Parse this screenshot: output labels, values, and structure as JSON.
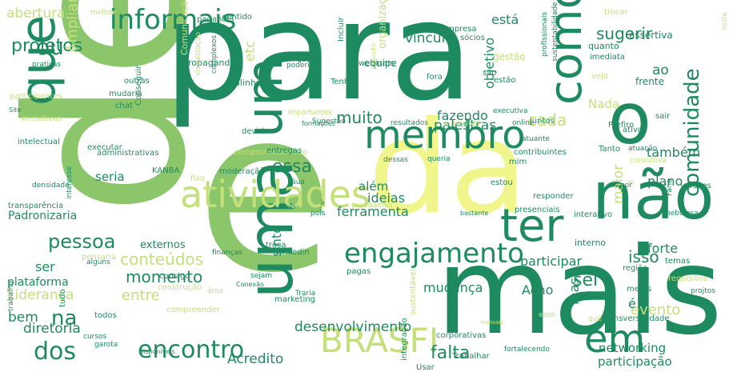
{
  "palette": {
    "dark_green": "#1e8a5f",
    "mid_green": "#3da66a",
    "light_green": "#8cc66b",
    "yellow_green": "#c3e07a",
    "pale_yellow": "#f0f58c",
    "teal": "#2a9d73",
    "forest": "#26905c"
  },
  "words": [
    {
      "text": "de",
      "color": "light_green",
      "rot": 90
    },
    {
      "text": "para",
      "color": "dark_green",
      "rot": 0
    },
    {
      "text": "e",
      "color": "light_green",
      "rot": 0
    },
    {
      "text": "da",
      "color": "pale_yellow",
      "rot": 0
    },
    {
      "text": "o",
      "color": "dark_green",
      "rot": 0
    },
    {
      "text": "mais",
      "color": "dark_green",
      "rot": 0
    },
    {
      "text": "que",
      "color": "dark_green",
      "rot": 90
    },
    {
      "text": "uma",
      "color": "dark_green",
      "rot": 90
    },
    {
      "text": "um",
      "color": "dark_green",
      "rot": 90
    },
    {
      "text": "não",
      "color": "dark_green",
      "rot": 0
    },
    {
      "text": "membro",
      "color": "dark_green",
      "rot": 0
    },
    {
      "text": "atividades",
      "color": "yellow_green",
      "rot": 0
    },
    {
      "text": "informais",
      "color": "dark_green",
      "rot": 0
    },
    {
      "text": "como",
      "color": "dark_green",
      "rot": 90
    },
    {
      "text": "ter",
      "color": "dark_green",
      "rot": 0
    },
    {
      "text": "engajamento",
      "color": "dark_green",
      "rot": 0
    },
    {
      "text": "BRASFI",
      "color": "yellow_green",
      "rot": 0
    },
    {
      "text": "em",
      "color": "dark_green",
      "rot": 0
    },
    {
      "text": "encontro",
      "color": "dark_green",
      "rot": 0
    },
    {
      "text": "dos",
      "color": "dark_green",
      "rot": 0
    },
    {
      "text": "na",
      "color": "dark_green",
      "rot": 0
    },
    {
      "text": "comunidade",
      "color": "dark_green",
      "rot": 90
    },
    {
      "text": "ou",
      "color": "dark_green",
      "rot": 0
    },
    {
      "text": "projetos",
      "color": "dark_green",
      "rot": 0
    },
    {
      "text": "abertura",
      "color": "yellow_green",
      "rot": 0
    },
    {
      "text": "etc",
      "color": "yellow_green",
      "rot": 90
    },
    {
      "text": "pessoa",
      "color": "dark_green",
      "rot": 0
    },
    {
      "text": "conteúdos",
      "color": "yellow_green",
      "rot": 0
    },
    {
      "text": "momento",
      "color": "dark_green",
      "rot": 0
    },
    {
      "text": "entre",
      "color": "yellow_green",
      "rot": 0
    },
    {
      "text": "muito",
      "color": "dark_green",
      "rot": 0
    },
    {
      "text": "fazendo",
      "color": "dark_green",
      "rot": 0
    },
    {
      "text": "cada",
      "color": "yellow_green",
      "rot": 0
    },
    {
      "text": "palestras",
      "color": "dark_green",
      "rot": 0
    },
    {
      "text": "essa",
      "color": "dark_green",
      "rot": 0
    },
    {
      "text": "isso",
      "color": "dark_green",
      "rot": 0
    },
    {
      "text": "sugerir",
      "color": "dark_green",
      "rot": 0
    },
    {
      "text": "vínculo",
      "color": "dark_green",
      "rot": 0
    },
    {
      "text": "objetivo",
      "color": "dark_green",
      "rot": 90
    },
    {
      "text": "Nada",
      "color": "yellow_green",
      "rot": 0
    },
    {
      "text": "ao",
      "color": "dark_green",
      "rot": 0
    },
    {
      "text": "também",
      "color": "dark_green",
      "rot": 0
    },
    {
      "text": "plano",
      "color": "dark_green",
      "rot": 0
    },
    {
      "text": "forte",
      "color": "dark_green",
      "rot": 0
    },
    {
      "text": "participar",
      "color": "dark_green",
      "rot": 0
    },
    {
      "text": "sei",
      "color": "dark_green",
      "rot": 0
    },
    {
      "text": "mas",
      "color": "dark_green",
      "rot": 90
    },
    {
      "text": "evento",
      "color": "yellow_green",
      "rot": 0
    },
    {
      "text": "é",
      "color": "dark_green",
      "rot": 0
    },
    {
      "text": "networking",
      "color": "dark_green",
      "rot": 0
    },
    {
      "text": "participação",
      "color": "dark_green",
      "rot": 0
    },
    {
      "text": "falta",
      "color": "dark_green",
      "rot": 0
    },
    {
      "text": "desenvolvimento",
      "color": "dark_green",
      "rot": 0
    },
    {
      "text": "Acredito",
      "color": "dark_green",
      "rot": 0
    },
    {
      "text": "mudança",
      "color": "dark_green",
      "rot": 0
    },
    {
      "text": "Acho",
      "color": "dark_green",
      "rot": 0
    },
    {
      "text": "ideias",
      "color": "dark_green",
      "rot": 0
    },
    {
      "text": "ferramenta",
      "color": "dark_green",
      "rot": 0
    },
    {
      "text": "além",
      "color": "dark_green",
      "rot": 0
    },
    {
      "text": "sinto",
      "color": "dark_green",
      "rot": 90
    },
    {
      "text": "seria",
      "color": "dark_green",
      "rot": 0
    },
    {
      "text": "maior",
      "color": "yellow_green",
      "rot": 90
    },
    {
      "text": "plataforma",
      "color": "dark_green",
      "rot": 0
    },
    {
      "text": "Liderança",
      "color": "yellow_green",
      "rot": 0
    },
    {
      "text": "bem",
      "color": "dark_green",
      "rot": 0
    },
    {
      "text": "diretoria",
      "color": "dark_green",
      "rot": 0
    },
    {
      "text": "ser",
      "color": "dark_green",
      "rot": 0
    },
    {
      "text": "Ampliar",
      "color": "yellow_green",
      "rot": 90
    },
    {
      "text": "está",
      "color": "dark_green",
      "rot": 0
    },
    {
      "text": "se",
      "color": "dark_green",
      "rot": 0
    },
    {
      "text": "externos",
      "color": "dark_green",
      "rot": 0
    },
    {
      "text": "interno",
      "color": "dark_green",
      "rot": 0
    },
    {
      "text": "organização",
      "color": "yellow_green",
      "rot": 90
    },
    {
      "text": "Comunicação",
      "color": "yellow_green",
      "rot": 90
    },
    {
      "text": "equipe",
      "color": "dark_green",
      "rot": 0
    },
    {
      "text": "empresa",
      "color": "dark_green",
      "rot": 0
    },
    {
      "text": "sócios",
      "color": "dark_green",
      "rot": 0
    },
    {
      "text": "imediata",
      "color": "dark_green",
      "rot": 0
    },
    {
      "text": "frente",
      "color": "dark_green",
      "rot": 0
    },
    {
      "text": "assertiva",
      "color": "dark_green",
      "rot": 0
    },
    {
      "text": "quanto",
      "color": "dark_green",
      "rot": 0
    },
    {
      "text": "trocar",
      "color": "yellow_green",
      "rot": 0
    },
    {
      "text": "noite",
      "color": "yellow_green",
      "rot": 90
    },
    {
      "text": "sustentabilidade",
      "color": "dark_green",
      "rot": 90
    },
    {
      "text": "profissionais",
      "color": "dark_green",
      "rot": 90
    },
    {
      "text": "gestão",
      "color": "yellow_green",
      "rot": 0
    },
    {
      "text": "são",
      "color": "dark_green",
      "rot": 0
    },
    {
      "text": "estão",
      "color": "dark_green",
      "rot": 0
    },
    {
      "text": "vejo",
      "color": "yellow_green",
      "rot": 0
    },
    {
      "text": "fora",
      "color": "dark_green",
      "rot": 0
    },
    {
      "text": "Tenho",
      "color": "dark_green",
      "rot": 0
    },
    {
      "text": "quem",
      "color": "dark_green",
      "rot": 0
    },
    {
      "text": "poderia",
      "color": "dark_green",
      "rot": 0
    },
    {
      "text": "propaganda",
      "color": "dark_green",
      "rot": 0
    },
    {
      "text": "alinhada",
      "color": "dark_green",
      "rot": 0
    },
    {
      "text": "complexos",
      "color": "dark_green",
      "rot": 90
    },
    {
      "text": "visualização",
      "color": "yellow_green",
      "rot": 90
    },
    {
      "text": "outras",
      "color": "dark_green",
      "rot": 0
    },
    {
      "text": "mudaria",
      "color": "dark_green",
      "rot": 0
    },
    {
      "text": "chat",
      "color": "dark_green",
      "rot": 0
    },
    {
      "text": "Conseguir",
      "color": "dark_green",
      "rot": 90
    },
    {
      "text": "devido",
      "color": "dark_green",
      "rot": 0
    },
    {
      "text": "comprometimento",
      "color": "yellow_green",
      "rot": 0
    },
    {
      "text": "entregas",
      "color": "dark_green",
      "rot": 0
    },
    {
      "text": "importantes",
      "color": "yellow_green",
      "rot": 0
    },
    {
      "text": "formações",
      "color": "dark_green",
      "rot": 0
    },
    {
      "text": "Sugestão",
      "color": "dark_green",
      "rot": 0
    },
    {
      "text": "resultados",
      "color": "dark_green",
      "rot": 0
    },
    {
      "text": "acessível",
      "color": "yellow_green",
      "rot": 0
    },
    {
      "text": "executiva",
      "color": "dark_green",
      "rot": 0
    },
    {
      "text": "online",
      "color": "dark_green",
      "rot": 0
    },
    {
      "text": "juntos",
      "color": "dark_green",
      "rot": 0
    },
    {
      "text": "atuante",
      "color": "dark_green",
      "rot": 0
    },
    {
      "text": "contribuintes",
      "color": "dark_green",
      "rot": 0
    },
    {
      "text": "Prefiro",
      "color": "dark_green",
      "rot": 0
    },
    {
      "text": "sair",
      "color": "dark_green",
      "rot": 0
    },
    {
      "text": "ativo",
      "color": "dark_green",
      "rot": 0
    },
    {
      "text": "atuação",
      "color": "dark_green",
      "rot": 0
    },
    {
      "text": "Tanto",
      "color": "dark_green",
      "rot": 0
    },
    {
      "text": "consultiva",
      "color": "yellow_green",
      "rot": 0
    },
    {
      "text": "Vi",
      "color": "yellow_green",
      "rot": 0
    },
    {
      "text": "por",
      "color": "dark_green",
      "rot": 0
    },
    {
      "text": "versões",
      "color": "dark_green",
      "rot": 0
    },
    {
      "text": "Faria",
      "color": "dark_green",
      "rot": 90
    },
    {
      "text": "presenciais",
      "color": "dark_green",
      "rot": 0
    },
    {
      "text": "estou",
      "color": "dark_green",
      "rot": 0
    },
    {
      "text": "mim",
      "color": "dark_green",
      "rot": 0
    },
    {
      "text": "queria",
      "color": "dark_green",
      "rot": 0
    },
    {
      "text": "dessas",
      "color": "dark_green",
      "rot": 0
    },
    {
      "text": "Sua",
      "color": "dark_green",
      "rot": 0
    },
    {
      "text": "pesquisa",
      "color": "dark_green",
      "rot": 0
    },
    {
      "text": "moderação",
      "color": "dark_green",
      "rot": 0
    },
    {
      "text": "fixo",
      "color": "yellow_green",
      "rot": 0
    },
    {
      "text": "KANBA",
      "color": "dark_green",
      "rot": 0
    },
    {
      "text": "administrativas",
      "color": "dark_green",
      "rot": 0
    },
    {
      "text": "executar",
      "color": "dark_green",
      "rot": 0
    },
    {
      "text": "intelectual",
      "color": "dark_green",
      "rot": 0
    },
    {
      "text": "iniciativas",
      "color": "yellow_green",
      "rot": 0
    },
    {
      "text": "participantes",
      "color": "yellow_green",
      "rot": 0
    },
    {
      "text": "praticas",
      "color": "dark_green",
      "rot": 0
    },
    {
      "text": "Site",
      "color": "dark_green",
      "rot": 0
    },
    {
      "text": "densidade",
      "color": "dark_green",
      "rot": 0
    },
    {
      "text": "interesse",
      "color": "dark_green",
      "rot": 90
    },
    {
      "text": "transparência",
      "color": "dark_green",
      "rot": 0
    },
    {
      "text": "Padronizaria",
      "color": "dark_green",
      "rot": 0
    },
    {
      "text": "pensaria",
      "color": "yellow_green",
      "rot": 0
    },
    {
      "text": "alguns",
      "color": "dark_green",
      "rot": 0
    },
    {
      "text": "trabalho",
      "color": "dark_green",
      "rot": 90
    },
    {
      "text": "tudo",
      "color": "dark_green",
      "rot": 90
    },
    {
      "text": "todos",
      "color": "dark_green",
      "rot": 0
    },
    {
      "text": "cursos",
      "color": "dark_green",
      "rot": 0
    },
    {
      "text": "garota",
      "color": "dark_green",
      "rot": 0
    },
    {
      "text": "disponíveis",
      "color": "dark_green",
      "rot": 0
    },
    {
      "text": "compreender",
      "color": "yellow_green",
      "rot": 0
    },
    {
      "text": "construção",
      "color": "yellow_green",
      "rot": 0
    },
    {
      "text": "consigo",
      "color": "dark_green",
      "rot": 0
    },
    {
      "text": "finanças",
      "color": "dark_green",
      "rot": 0
    },
    {
      "text": "Linkedin",
      "color": "dark_green",
      "rot": 0
    },
    {
      "text": "troca",
      "color": "dark_green",
      "rot": 0
    },
    {
      "text": "sejam",
      "color": "dark_green",
      "rot": 0
    },
    {
      "text": "pagas",
      "color": "dark_green",
      "rot": 0
    },
    {
      "text": "Conexão",
      "color": "dark_green",
      "rot": 0
    },
    {
      "text": "marketing",
      "color": "dark_green",
      "rot": 0
    },
    {
      "text": "Traria",
      "color": "dark_green",
      "rot": 0
    },
    {
      "text": "precisamos",
      "color": "yellow_green",
      "rot": 0
    },
    {
      "text": "bastante",
      "color": "dark_green",
      "rot": 0
    },
    {
      "text": "responder",
      "color": "dark_green",
      "rot": 0
    },
    {
      "text": "interativo",
      "color": "dark_green",
      "rot": 0
    },
    {
      "text": "nebulosa",
      "color": "dark_green",
      "rot": 0
    },
    {
      "text": "temas",
      "color": "dark_green",
      "rot": 0
    },
    {
      "text": "região",
      "color": "dark_green",
      "rot": 0
    },
    {
      "text": "requisitos",
      "color": "yellow_green",
      "rot": 0
    },
    {
      "text": "projtos",
      "color": "dark_green",
      "rot": 0
    },
    {
      "text": "metas",
      "color": "dark_green",
      "rot": 0
    },
    {
      "text": "Transversalidade",
      "color": "dark_green",
      "rot": 0
    },
    {
      "text": "corporativas",
      "color": "dark_green",
      "rot": 0
    },
    {
      "text": "Usar",
      "color": "dark_green",
      "rot": 0
    },
    {
      "text": "Trabalhar",
      "color": "dark_green",
      "rot": 0
    },
    {
      "text": "integração",
      "color": "dark_green",
      "rot": 90
    },
    {
      "text": "sustentável",
      "color": "yellow_green",
      "rot": 90
    },
    {
      "text": "mensais",
      "color": "yellow_green",
      "rot": 0
    },
    {
      "text": "fortalecendo",
      "color": "dark_green",
      "rot": 0
    },
    {
      "text": "pagantes",
      "color": "dark_green",
      "rot": 0
    },
    {
      "text": "sentido",
      "color": "dark_green",
      "rot": 0
    },
    {
      "text": "webinars",
      "color": "dark_green",
      "rot": 0
    },
    {
      "text": "Incluir",
      "color": "dark_green",
      "rot": 90
    },
    {
      "text": "inclusão",
      "color": "yellow_green",
      "rot": 90
    },
    {
      "text": "melhor",
      "color": "yellow_green",
      "rot": 0
    },
    {
      "text": "meio",
      "color": "dark_green",
      "rot": 0
    },
    {
      "text": "pois",
      "color": "dark_green",
      "rot": 0
    },
    {
      "text": "à",
      "color": "dark_green",
      "rot": 0
    },
    {
      "text": "área",
      "color": "yellow_green",
      "rot": 0
    },
    {
      "text": "esse",
      "color": "yellow_green",
      "rot": 0
    },
    {
      "text": "qué",
      "color": "yellow_green",
      "rot": 0
    }
  ]
}
